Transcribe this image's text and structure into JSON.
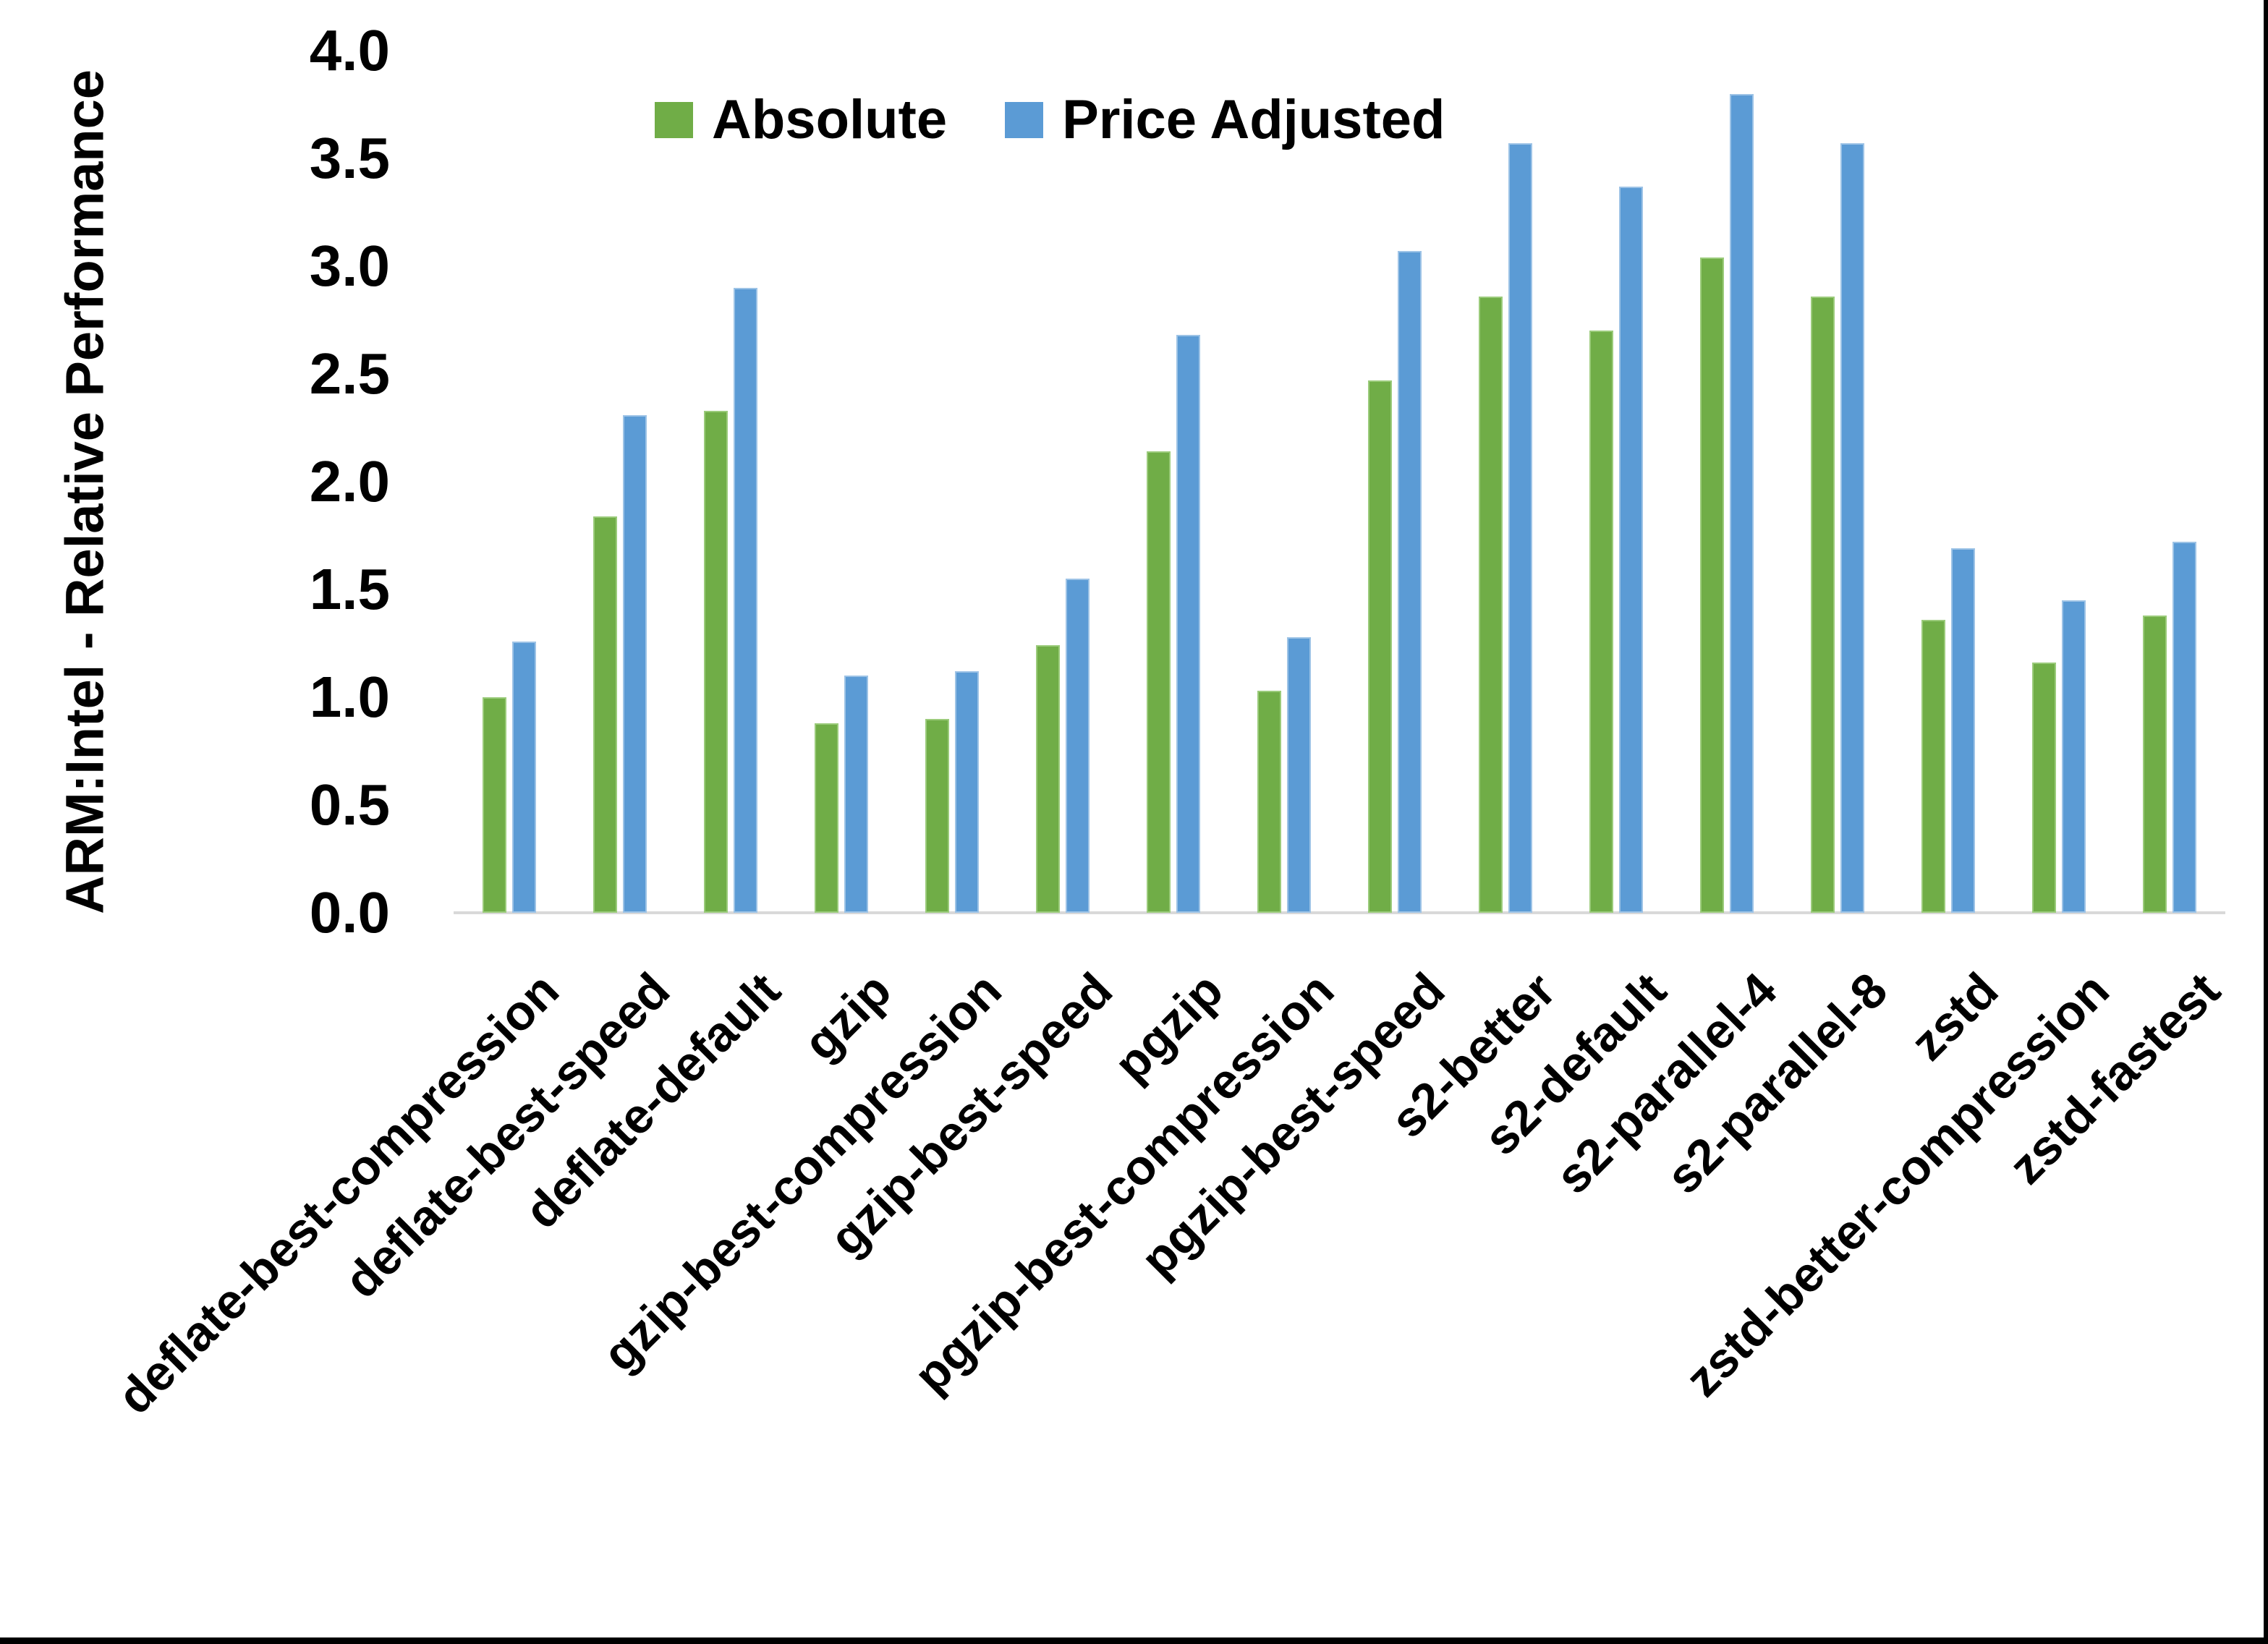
{
  "page": {
    "background": "#FFFFFF",
    "frame_right_color": "#000000",
    "frame_bottom_color": "#000000",
    "axis_line_color": "#D9D9D9",
    "text_color": "#000000"
  },
  "chart_data": {
    "type": "bar",
    "title": "",
    "y_axis_label": "ARM:Intel - Relative Performance",
    "x_axis_label": "",
    "ylim": [
      0.0,
      4.0
    ],
    "ytick_step": 0.5,
    "ytick_labels": [
      "0.0",
      "0.5",
      "1.0",
      "1.5",
      "2.0",
      "2.5",
      "3.0",
      "3.5",
      "4.0"
    ],
    "grid": false,
    "legend_position": "top-center",
    "x_tick_label_rotation_deg": 45,
    "categories": [
      "deflate-best-compression",
      "deflate-best-speed",
      "deflate-default",
      "gzip",
      "gzip-best-compression",
      "gzip-best-speed",
      "pgzip",
      "pgzip-best-compression",
      "pgzip-best-speed",
      "s2-better",
      "s2-default",
      "s2-parallel-4",
      "s2-parallel-8",
      "zstd",
      "zstd-better-compression",
      "zstd-fastest"
    ],
    "series": [
      {
        "name": "Absolute",
        "color": "#70AD47",
        "border_color": "#9BCB7B",
        "values": [
          1.0,
          1.84,
          2.33,
          0.88,
          0.9,
          1.24,
          2.14,
          1.03,
          2.47,
          2.86,
          2.7,
          3.04,
          2.86,
          1.36,
          1.16,
          1.38
        ]
      },
      {
        "name": "Price Adjusted",
        "color": "#5B9BD5",
        "border_color": "#9DC3E6",
        "values": [
          1.26,
          2.31,
          2.9,
          1.1,
          1.12,
          1.55,
          2.68,
          1.28,
          3.07,
          3.57,
          3.37,
          3.8,
          3.57,
          1.69,
          1.45,
          1.72
        ]
      }
    ]
  }
}
